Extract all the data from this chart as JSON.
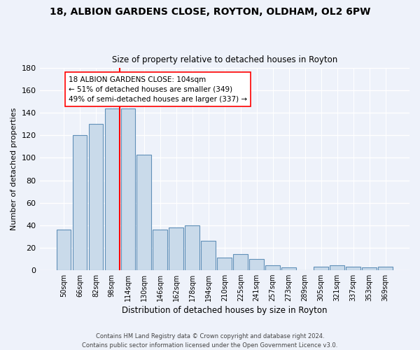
{
  "title1": "18, ALBION GARDENS CLOSE, ROYTON, OLDHAM, OL2 6PW",
  "title2": "Size of property relative to detached houses in Royton",
  "xlabel": "Distribution of detached houses by size in Royton",
  "ylabel": "Number of detached properties",
  "categories": [
    "50sqm",
    "66sqm",
    "82sqm",
    "98sqm",
    "114sqm",
    "130sqm",
    "146sqm",
    "162sqm",
    "178sqm",
    "194sqm",
    "210sqm",
    "225sqm",
    "241sqm",
    "257sqm",
    "273sqm",
    "289sqm",
    "305sqm",
    "321sqm",
    "337sqm",
    "353sqm",
    "369sqm"
  ],
  "values": [
    36,
    120,
    130,
    144,
    144,
    103,
    36,
    38,
    40,
    26,
    11,
    14,
    10,
    4,
    2,
    0,
    3,
    4,
    3,
    2,
    3
  ],
  "bar_color": "#c9daea",
  "bar_edge_color": "#6090b8",
  "vline_x": 3.5,
  "vline_color": "red",
  "annotation_text": "18 ALBION GARDENS CLOSE: 104sqm\n← 51% of detached houses are smaller (349)\n49% of semi-detached houses are larger (337) →",
  "annotation_box_color": "white",
  "annotation_box_edge_color": "red",
  "ylim": [
    0,
    180
  ],
  "yticks": [
    0,
    20,
    40,
    60,
    80,
    100,
    120,
    140,
    160,
    180
  ],
  "background_color": "#eef2fa",
  "grid_color": "#ffffff",
  "footer1": "Contains HM Land Registry data © Crown copyright and database right 2024.",
  "footer2": "Contains public sector information licensed under the Open Government Licence v3.0."
}
